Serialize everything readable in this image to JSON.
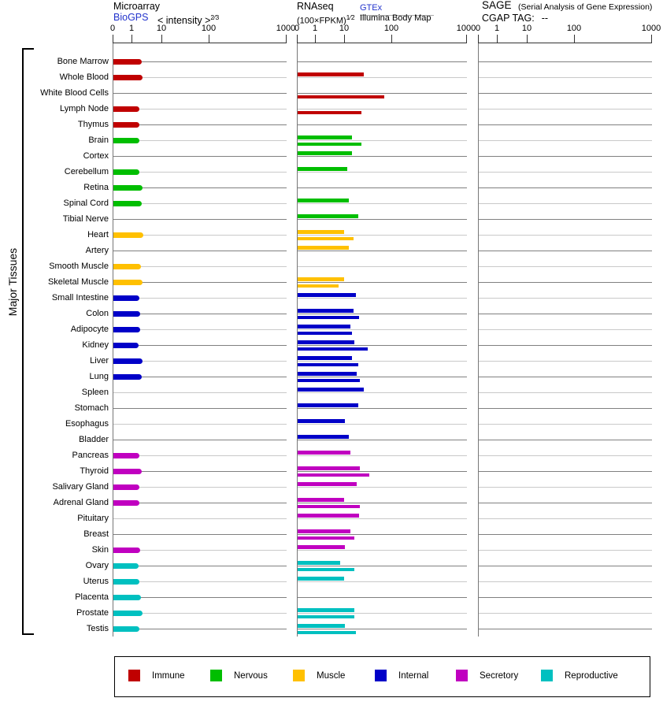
{
  "panels": {
    "microarray": {
      "title": "Microarray",
      "source_link": "BioGPS",
      "scale_note": "< intensity >",
      "scale_exponent": "2⁄3"
    },
    "rnaseq": {
      "title": "RNAseq",
      "scale_note": "(100×FPKM)",
      "scale_exponent": "1⁄2",
      "source_link": "GTEx",
      "source_secondary": "Illumina Body Map"
    },
    "sage": {
      "title": "SAGE",
      "subtitle": "(Serial Analysis of Gene Expression)",
      "tag_label": "CGAP TAG:",
      "tag_value": "--"
    }
  },
  "axis_ticks": [
    "0",
    "1",
    "10",
    "100",
    "1000"
  ],
  "sidebar": {
    "label": "Major Tissues"
  },
  "legend": [
    {
      "key": "immune",
      "label": "Immune",
      "color": "#c00000"
    },
    {
      "key": "nervous",
      "label": "Nervous",
      "color": "#00be00"
    },
    {
      "key": "muscle",
      "label": "Muscle",
      "color": "#ffc000"
    },
    {
      "key": "internal",
      "label": "Internal",
      "color": "#0000c8"
    },
    {
      "key": "secretory",
      "label": "Secretory",
      "color": "#c000c0"
    },
    {
      "key": "reproductive",
      "label": "Reproductive",
      "color": "#00c0c0"
    }
  ],
  "chart_data": {
    "type": "bar",
    "orientation": "horizontal",
    "x_ticks": [
      0,
      1,
      10,
      100,
      1000
    ],
    "x_scale": "compressed power scale (0,1,10,100,1000)",
    "series_names": [
      "Microarray intensity",
      "RNAseq GTEx",
      "RNAseq Illumina Body Map"
    ],
    "sage_values": "none (CGAP TAG: --)",
    "tissues": [
      {
        "name": "Bone Marrow",
        "category": "immune",
        "microarray": 2.1,
        "gtex": null,
        "illumina": null
      },
      {
        "name": "Whole Blood",
        "category": "immune",
        "microarray": 2.2,
        "gtex": 25,
        "illumina": null
      },
      {
        "name": "White Blood Cells",
        "category": "immune",
        "microarray": null,
        "gtex": null,
        "illumina": 70
      },
      {
        "name": "Lymph Node",
        "category": "immune",
        "microarray": 1.8,
        "gtex": null,
        "illumina": 22
      },
      {
        "name": "Thymus",
        "category": "immune",
        "microarray": 1.8,
        "gtex": null,
        "illumina": null
      },
      {
        "name": "Brain",
        "category": "nervous",
        "microarray": 1.8,
        "gtex": 14,
        "illumina": 22
      },
      {
        "name": "Cortex",
        "category": "nervous",
        "microarray": null,
        "gtex": 14,
        "illumina": null
      },
      {
        "name": "Cerebellum",
        "category": "nervous",
        "microarray": 1.8,
        "gtex": 11,
        "illumina": null
      },
      {
        "name": "Retina",
        "category": "nervous",
        "microarray": 2.2,
        "gtex": null,
        "illumina": null
      },
      {
        "name": "Spinal Cord",
        "category": "nervous",
        "microarray": 2.1,
        "gtex": 12,
        "illumina": null
      },
      {
        "name": "Tibial Nerve",
        "category": "nervous",
        "microarray": null,
        "gtex": 19,
        "illumina": null
      },
      {
        "name": "Heart",
        "category": "muscle",
        "microarray": 2.4,
        "gtex": 9,
        "illumina": 15
      },
      {
        "name": "Artery",
        "category": "muscle",
        "microarray": null,
        "gtex": 12,
        "illumina": null
      },
      {
        "name": "Smooth Muscle",
        "category": "muscle",
        "microarray": 2.0,
        "gtex": null,
        "illumina": null
      },
      {
        "name": "Skeletal Muscle",
        "category": "muscle",
        "microarray": 2.2,
        "gtex": 9,
        "illumina": 6
      },
      {
        "name": "Small Intestine",
        "category": "internal",
        "microarray": 1.8,
        "gtex": 17,
        "illumina": null
      },
      {
        "name": "Colon",
        "category": "internal",
        "microarray": 1.9,
        "gtex": 15,
        "illumina": 20
      },
      {
        "name": "Adipocyte",
        "category": "internal",
        "microarray": 1.9,
        "gtex": 13,
        "illumina": 14
      },
      {
        "name": "Kidney",
        "category": "internal",
        "microarray": 1.7,
        "gtex": 16,
        "illumina": 30
      },
      {
        "name": "Liver",
        "category": "internal",
        "microarray": 2.3,
        "gtex": 14,
        "illumina": 19
      },
      {
        "name": "Lung",
        "category": "internal",
        "microarray": 2.1,
        "gtex": 18,
        "illumina": 21
      },
      {
        "name": "Spleen",
        "category": "internal",
        "microarray": null,
        "gtex": 25,
        "illumina": null
      },
      {
        "name": "Stomach",
        "category": "internal",
        "microarray": null,
        "gtex": 19,
        "illumina": null
      },
      {
        "name": "Esophagus",
        "category": "internal",
        "microarray": null,
        "gtex": 10,
        "illumina": null
      },
      {
        "name": "Bladder",
        "category": "internal",
        "microarray": null,
        "gtex": 12,
        "illumina": null
      },
      {
        "name": "Pancreas",
        "category": "secretory",
        "microarray": 1.8,
        "gtex": 13,
        "illumina": null
      },
      {
        "name": "Thyroid",
        "category": "secretory",
        "microarray": 2.1,
        "gtex": 21,
        "illumina": 33
      },
      {
        "name": "Salivary Gland",
        "category": "secretory",
        "microarray": 1.8,
        "gtex": 18,
        "illumina": null
      },
      {
        "name": "Adrenal Gland",
        "category": "secretory",
        "microarray": 1.8,
        "gtex": 9,
        "illumina": 21
      },
      {
        "name": "Pituitary",
        "category": "secretory",
        "microarray": null,
        "gtex": 20,
        "illumina": null
      },
      {
        "name": "Breast",
        "category": "secretory",
        "microarray": null,
        "gtex": 13,
        "illumina": 16
      },
      {
        "name": "Skin",
        "category": "secretory",
        "microarray": 1.9,
        "gtex": 10,
        "illumina": null
      },
      {
        "name": "Ovary",
        "category": "reproductive",
        "microarray": 1.7,
        "gtex": 7,
        "illumina": 16
      },
      {
        "name": "Uterus",
        "category": "reproductive",
        "microarray": 1.8,
        "gtex": 9,
        "illumina": null
      },
      {
        "name": "Placenta",
        "category": "reproductive",
        "microarray": 2.0,
        "gtex": null,
        "illumina": null
      },
      {
        "name": "Prostate",
        "category": "reproductive",
        "microarray": 2.2,
        "gtex": 16,
        "illumina": 16
      },
      {
        "name": "Testis",
        "category": "reproductive",
        "microarray": 1.8,
        "gtex": 10,
        "illumina": 17
      }
    ]
  }
}
